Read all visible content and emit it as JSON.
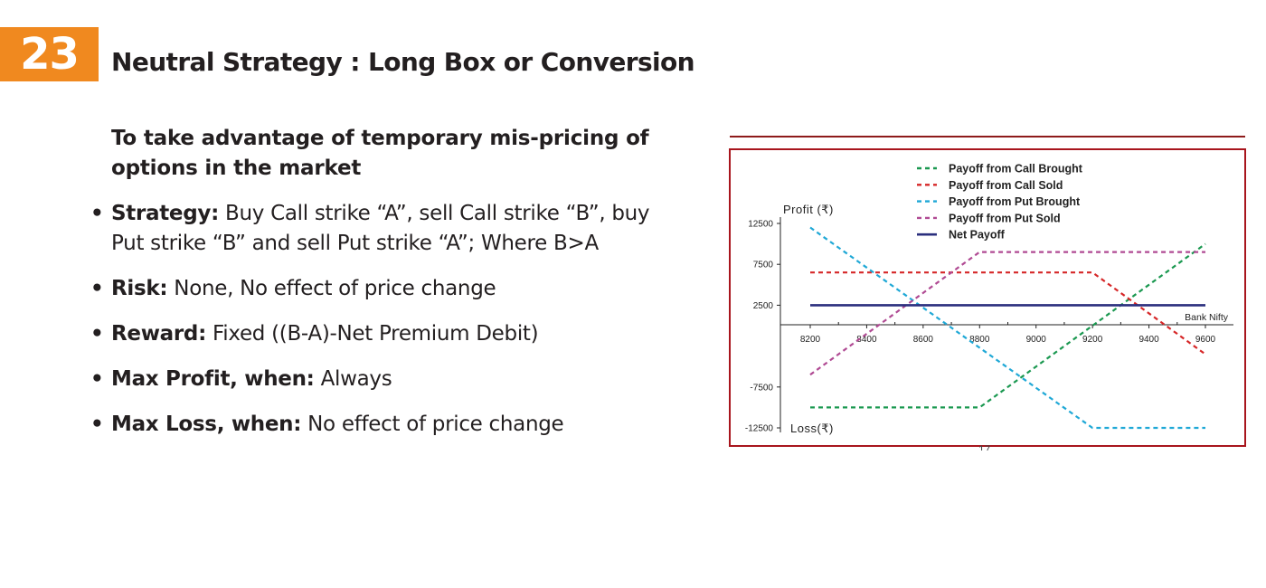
{
  "badge": {
    "number": "23",
    "color": "#f0891f"
  },
  "title": "Neutral Strategy : Long Box or Conversion",
  "subtitle": "To take advantage of temporary mis-pricing of options in the market",
  "bullets": [
    {
      "label": "Strategy:",
      "text": " Buy Call strike “A”, sell Call strike “B”, buy Put strike “B” and sell Put strike “A”; Where B>A"
    },
    {
      "label": "Risk:",
      "text": " None, No effect of price change"
    },
    {
      "label": "Reward:",
      "text": " Fixed ((B-A)-Net Premium Debit)"
    },
    {
      "label": "Max Profit, when:",
      "text": " Always"
    },
    {
      "label": "Max Loss, when:",
      "text": " No effect of price change"
    }
  ],
  "page_number": "17",
  "chart_data": {
    "type": "line",
    "y_axis_label_top": "Profit (₹)",
    "y_axis_label_bottom": "Loss(₹)",
    "x_axis_label": "Bank Nifty",
    "x": [
      8200,
      9600
    ],
    "x_ticks": [
      "8200",
      "8400",
      "8600",
      "8800",
      "9000",
      "9200",
      "9400",
      "9600"
    ],
    "y_ticks": [
      "12500",
      "7500",
      "2500",
      "-7500",
      "-12500"
    ],
    "xlim": [
      8200,
      9600
    ],
    "ylim": [
      -12500,
      12500
    ],
    "legend_placement": "top-center",
    "border_color": "#a8151d",
    "series": [
      {
        "name": "Payoff from Call Brought",
        "color": "#1a9850",
        "dash": true,
        "points": [
          [
            8200,
            -10000
          ],
          [
            8800,
            -10000
          ],
          [
            9600,
            10000
          ]
        ]
      },
      {
        "name": "Payoff from Call Sold",
        "color": "#d62728",
        "dash": true,
        "points": [
          [
            8200,
            6500
          ],
          [
            9200,
            6500
          ],
          [
            9600,
            -3500
          ]
        ]
      },
      {
        "name": "Payoff from Put Brought",
        "color": "#1fa8d6",
        "dash": true,
        "points": [
          [
            8200,
            12000
          ],
          [
            9200,
            -12500
          ],
          [
            9600,
            -12500
          ]
        ]
      },
      {
        "name": "Payoff from Put Sold",
        "color": "#b04a93",
        "dash": true,
        "points": [
          [
            8200,
            -6000
          ],
          [
            8800,
            9000
          ],
          [
            9600,
            9000
          ]
        ]
      },
      {
        "name": "Net Payoff",
        "color": "#2b2f7e",
        "dash": false,
        "points": [
          [
            8200,
            2500
          ],
          [
            9600,
            2500
          ]
        ]
      }
    ]
  }
}
